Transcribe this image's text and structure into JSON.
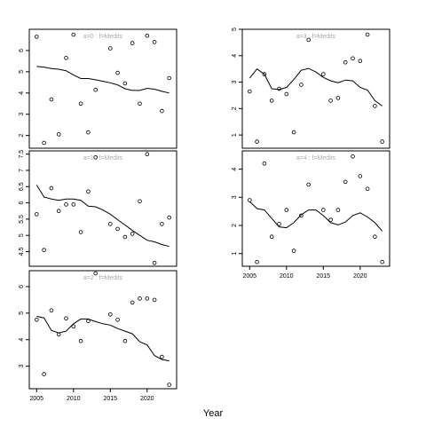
{
  "x_title": "Year",
  "chart_data": [
    {
      "type": "scatter",
      "strip": "a=0 : f=Medits",
      "xlim": [
        2004,
        2024
      ],
      "ylim": [
        1.4,
        7.0
      ],
      "xticks": [],
      "yticks": [
        2,
        3,
        4,
        5,
        6
      ],
      "points": [
        [
          2005,
          6.65
        ],
        [
          2006,
          1.65
        ],
        [
          2007,
          3.7
        ],
        [
          2008,
          2.05
        ],
        [
          2009,
          5.65
        ],
        [
          2010,
          6.75
        ],
        [
          2011,
          3.5
        ],
        [
          2012,
          2.15
        ],
        [
          2013,
          4.15
        ],
        [
          2015,
          6.1
        ],
        [
          2016,
          4.95
        ],
        [
          2017,
          4.45
        ],
        [
          2018,
          6.35
        ],
        [
          2019,
          3.5
        ],
        [
          2020,
          6.7
        ],
        [
          2021,
          6.4
        ],
        [
          2022,
          3.15
        ],
        [
          2023,
          4.7
        ]
      ],
      "smooth": [
        [
          2005,
          5.25
        ],
        [
          2006,
          5.22
        ],
        [
          2007,
          5.15
        ],
        [
          2008,
          5.12
        ],
        [
          2009,
          5.05
        ],
        [
          2010,
          4.85
        ],
        [
          2011,
          4.68
        ],
        [
          2012,
          4.68
        ],
        [
          2013,
          4.62
        ],
        [
          2014,
          4.55
        ],
        [
          2015,
          4.48
        ],
        [
          2016,
          4.38
        ],
        [
          2017,
          4.2
        ],
        [
          2018,
          4.12
        ],
        [
          2019,
          4.12
        ],
        [
          2020,
          4.22
        ],
        [
          2021,
          4.18
        ],
        [
          2022,
          4.08
        ],
        [
          2023,
          4.0
        ]
      ]
    },
    {
      "type": "scatter",
      "strip": "a=1 : f=Medits",
      "xlim": [
        2004,
        2024
      ],
      "ylim": [
        4.05,
        7.6
      ],
      "xticks": [],
      "yticks": [
        4.5,
        5.0,
        5.5,
        6.0,
        6.5,
        7.0,
        7.5
      ],
      "points": [
        [
          2005,
          5.65
        ],
        [
          2006,
          4.55
        ],
        [
          2007,
          6.45
        ],
        [
          2008,
          5.75
        ],
        [
          2009,
          5.95
        ],
        [
          2010,
          5.95
        ],
        [
          2011,
          5.1
        ],
        [
          2012,
          6.35
        ],
        [
          2013,
          7.4
        ],
        [
          2015,
          5.35
        ],
        [
          2016,
          5.2
        ],
        [
          2017,
          4.95
        ],
        [
          2018,
          5.05
        ],
        [
          2019,
          6.05
        ],
        [
          2020,
          7.5
        ],
        [
          2021,
          4.15
        ],
        [
          2022,
          5.35
        ],
        [
          2023,
          5.55
        ]
      ],
      "smooth": [
        [
          2005,
          6.55
        ],
        [
          2006,
          6.18
        ],
        [
          2007,
          6.12
        ],
        [
          2008,
          6.08
        ],
        [
          2009,
          6.12
        ],
        [
          2010,
          6.12
        ],
        [
          2011,
          6.08
        ],
        [
          2012,
          5.9
        ],
        [
          2013,
          5.88
        ],
        [
          2014,
          5.78
        ],
        [
          2015,
          5.65
        ],
        [
          2016,
          5.48
        ],
        [
          2017,
          5.32
        ],
        [
          2018,
          5.15
        ],
        [
          2019,
          5.0
        ],
        [
          2020,
          4.85
        ],
        [
          2021,
          4.8
        ],
        [
          2022,
          4.72
        ],
        [
          2023,
          4.66
        ]
      ]
    },
    {
      "type": "scatter",
      "strip": "a=2 : f=Medits",
      "xlim": [
        2004,
        2024
      ],
      "ylim": [
        2.15,
        6.6
      ],
      "xticks": [
        2005,
        2010,
        2015,
        2020
      ],
      "yticks": [
        3,
        4,
        5,
        6
      ],
      "points": [
        [
          2005,
          4.75
        ],
        [
          2006,
          2.7
        ],
        [
          2007,
          5.1
        ],
        [
          2008,
          4.2
        ],
        [
          2009,
          4.8
        ],
        [
          2010,
          4.5
        ],
        [
          2011,
          3.95
        ],
        [
          2012,
          4.7
        ],
        [
          2013,
          6.5
        ],
        [
          2015,
          4.95
        ],
        [
          2016,
          4.75
        ],
        [
          2017,
          3.95
        ],
        [
          2018,
          5.4
        ],
        [
          2019,
          5.55
        ],
        [
          2020,
          5.55
        ],
        [
          2021,
          5.5
        ],
        [
          2022,
          3.35
        ],
        [
          2023,
          2.3
        ]
      ],
      "smooth": [
        [
          2005,
          4.88
        ],
        [
          2006,
          4.82
        ],
        [
          2007,
          4.35
        ],
        [
          2008,
          4.25
        ],
        [
          2009,
          4.32
        ],
        [
          2010,
          4.6
        ],
        [
          2011,
          4.78
        ],
        [
          2012,
          4.78
        ],
        [
          2013,
          4.68
        ],
        [
          2014,
          4.6
        ],
        [
          2015,
          4.55
        ],
        [
          2016,
          4.42
        ],
        [
          2017,
          4.32
        ],
        [
          2018,
          4.22
        ],
        [
          2019,
          3.92
        ],
        [
          2020,
          3.8
        ],
        [
          2021,
          3.4
        ],
        [
          2022,
          3.25
        ],
        [
          2023,
          3.2
        ]
      ]
    },
    {
      "type": "scatter",
      "strip": "a=3 : f=Medits",
      "xlim": [
        2004,
        2024
      ],
      "ylim": [
        0.5,
        5.0
      ],
      "xticks": [],
      "yticks": [
        1,
        2,
        3,
        4,
        5
      ],
      "points": [
        [
          2005,
          2.65
        ],
        [
          2006,
          0.75
        ],
        [
          2007,
          3.3
        ],
        [
          2008,
          2.3
        ],
        [
          2009,
          2.75
        ],
        [
          2010,
          2.55
        ],
        [
          2011,
          1.1
        ],
        [
          2012,
          2.9
        ],
        [
          2013,
          4.6
        ],
        [
          2015,
          3.3
        ],
        [
          2016,
          2.3
        ],
        [
          2017,
          2.4
        ],
        [
          2018,
          3.75
        ],
        [
          2019,
          3.9
        ],
        [
          2020,
          3.8
        ],
        [
          2021,
          4.8
        ],
        [
          2022,
          2.1
        ],
        [
          2023,
          0.75
        ]
      ],
      "smooth": [
        [
          2005,
          3.15
        ],
        [
          2006,
          3.5
        ],
        [
          2007,
          3.3
        ],
        [
          2008,
          2.75
        ],
        [
          2009,
          2.72
        ],
        [
          2010,
          2.8
        ],
        [
          2011,
          3.1
        ],
        [
          2012,
          3.45
        ],
        [
          2013,
          3.52
        ],
        [
          2014,
          3.38
        ],
        [
          2015,
          3.18
        ],
        [
          2016,
          3.05
        ],
        [
          2017,
          2.98
        ],
        [
          2018,
          3.08
        ],
        [
          2019,
          3.05
        ],
        [
          2020,
          2.8
        ],
        [
          2021,
          2.7
        ],
        [
          2022,
          2.3
        ],
        [
          2023,
          2.1
        ]
      ]
    },
    {
      "type": "scatter",
      "strip": "a=4 : f=Medits",
      "xlim": [
        2004,
        2024
      ],
      "ylim": [
        0.55,
        4.65
      ],
      "xticks": [
        2005,
        2010,
        2015,
        2020
      ],
      "yticks": [
        1,
        2,
        3,
        4
      ],
      "points": [
        [
          2005,
          2.9
        ],
        [
          2006,
          0.7
        ],
        [
          2007,
          4.2
        ],
        [
          2008,
          1.6
        ],
        [
          2009,
          2.05
        ],
        [
          2010,
          2.55
        ],
        [
          2011,
          1.1
        ],
        [
          2012,
          2.35
        ],
        [
          2013,
          3.45
        ],
        [
          2015,
          2.55
        ],
        [
          2016,
          2.2
        ],
        [
          2017,
          2.55
        ],
        [
          2018,
          3.55
        ],
        [
          2019,
          4.45
        ],
        [
          2020,
          3.75
        ],
        [
          2021,
          3.3
        ],
        [
          2022,
          1.6
        ],
        [
          2023,
          0.7
        ]
      ],
      "smooth": [
        [
          2005,
          2.85
        ],
        [
          2006,
          2.6
        ],
        [
          2007,
          2.55
        ],
        [
          2008,
          2.25
        ],
        [
          2009,
          1.95
        ],
        [
          2010,
          1.92
        ],
        [
          2011,
          2.1
        ],
        [
          2012,
          2.38
        ],
        [
          2013,
          2.55
        ],
        [
          2014,
          2.55
        ],
        [
          2015,
          2.35
        ],
        [
          2016,
          2.1
        ],
        [
          2017,
          2.02
        ],
        [
          2018,
          2.12
        ],
        [
          2019,
          2.35
        ],
        [
          2020,
          2.45
        ],
        [
          2021,
          2.3
        ],
        [
          2022,
          2.1
        ],
        [
          2023,
          1.8
        ]
      ]
    }
  ]
}
